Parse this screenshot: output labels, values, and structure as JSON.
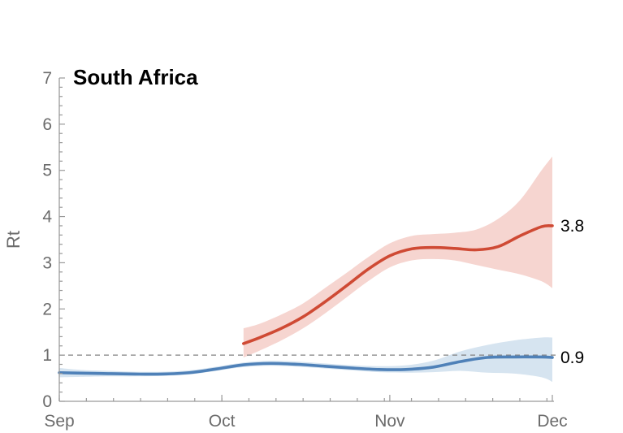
{
  "chart_data": {
    "type": "line",
    "title": "South Africa",
    "xlabel": "",
    "ylabel": "Rt",
    "ylim": [
      0,
      7
    ],
    "yticks": [
      0,
      1,
      2,
      3,
      4,
      5,
      6,
      7
    ],
    "x_tick_labels": [
      "Sep",
      "Oct",
      "Nov",
      "Dec"
    ],
    "x_ticks": [
      "2021-09-01",
      "2021-10-01",
      "2021-11-01",
      "2021-12-01"
    ],
    "xlim": [
      "2021-09-01",
      "2021-12-01"
    ],
    "reference_line": {
      "y": 1,
      "style": "dashed"
    },
    "grid": false,
    "series": [
      {
        "color": "#4f81b8",
        "band_color": "#d6e4f0",
        "end_label": "0.9",
        "x": [
          "2021-09-01",
          "2021-09-05",
          "2021-09-10",
          "2021-09-15",
          "2021-09-20",
          "2021-09-25",
          "2021-09-30",
          "2021-10-05",
          "2021-10-10",
          "2021-10-15",
          "2021-10-20",
          "2021-10-25",
          "2021-10-30",
          "2021-11-04",
          "2021-11-09",
          "2021-11-14",
          "2021-11-19",
          "2021-11-24",
          "2021-11-29",
          "2021-12-01"
        ],
        "y": [
          0.62,
          0.61,
          0.6,
          0.59,
          0.59,
          0.62,
          0.7,
          0.79,
          0.82,
          0.8,
          0.76,
          0.72,
          0.69,
          0.69,
          0.74,
          0.86,
          0.95,
          0.96,
          0.96,
          0.95
        ],
        "y_low": [
          0.52,
          0.53,
          0.54,
          0.54,
          0.55,
          0.58,
          0.66,
          0.74,
          0.77,
          0.75,
          0.71,
          0.67,
          0.63,
          0.62,
          0.63,
          0.66,
          0.62,
          0.6,
          0.52,
          0.42
        ],
        "y_high": [
          0.72,
          0.68,
          0.66,
          0.64,
          0.64,
          0.67,
          0.75,
          0.84,
          0.88,
          0.86,
          0.82,
          0.78,
          0.76,
          0.78,
          0.88,
          1.08,
          1.22,
          1.32,
          1.38,
          1.38
        ]
      },
      {
        "color": "#cf4a34",
        "band_color": "#f6d5d0",
        "end_label": "3.8",
        "x": [
          "2021-10-05",
          "2021-10-08",
          "2021-10-12",
          "2021-10-16",
          "2021-10-20",
          "2021-10-24",
          "2021-10-28",
          "2021-11-01",
          "2021-11-05",
          "2021-11-09",
          "2021-11-13",
          "2021-11-17",
          "2021-11-21",
          "2021-11-25",
          "2021-11-29",
          "2021-12-01"
        ],
        "y": [
          1.25,
          1.38,
          1.58,
          1.83,
          2.15,
          2.5,
          2.86,
          3.15,
          3.3,
          3.33,
          3.31,
          3.28,
          3.35,
          3.58,
          3.78,
          3.8
        ],
        "y_low": [
          0.95,
          1.1,
          1.32,
          1.58,
          1.9,
          2.25,
          2.6,
          2.9,
          3.05,
          3.08,
          3.05,
          2.95,
          2.85,
          2.75,
          2.6,
          2.45
        ],
        "y_high": [
          1.58,
          1.68,
          1.88,
          2.12,
          2.45,
          2.78,
          3.12,
          3.42,
          3.58,
          3.62,
          3.65,
          3.72,
          3.95,
          4.35,
          5.0,
          5.3
        ]
      }
    ]
  }
}
